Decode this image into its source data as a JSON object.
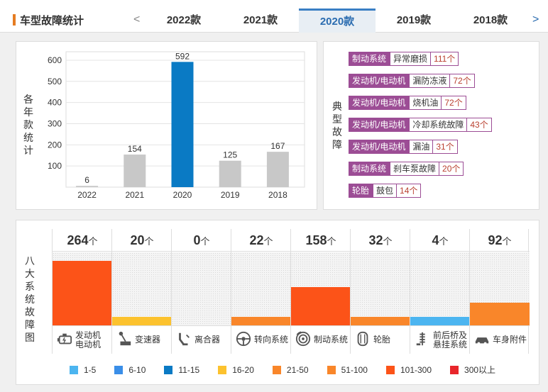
{
  "header": {
    "title": "车型故障统计",
    "prev": "<",
    "next": ">",
    "tabs": [
      "2022款",
      "2021款",
      "2020款",
      "2019款",
      "2018款"
    ],
    "active_tab": 2
  },
  "chart_panel": {
    "label": "各年款统计"
  },
  "chart_data": {
    "type": "bar",
    "categories": [
      "2022",
      "2021",
      "2020",
      "2019",
      "2018"
    ],
    "values": [
      6,
      154,
      592,
      125,
      167
    ],
    "yticks": [
      100,
      200,
      300,
      400,
      500,
      600
    ],
    "ylim": [
      0,
      640
    ],
    "highlight_index": 2,
    "colors": {
      "normal": "#c8c8c8",
      "highlight": "#0a7ac4"
    }
  },
  "typical_panel": {
    "label": "典型故障",
    "items": [
      {
        "system": "制动系统",
        "name": "异常磨损",
        "count": "111个"
      },
      {
        "system": "发动机/电动机",
        "name": "漏防冻液",
        "count": "72个"
      },
      {
        "system": "发动机/电动机",
        "name": "烧机油",
        "count": "72个"
      },
      {
        "system": "发动机/电动机",
        "name": "冷却系统故障",
        "count": "43个"
      },
      {
        "system": "发动机/电动机",
        "name": "漏油",
        "count": "31个"
      },
      {
        "system": "制动系统",
        "name": "刹车泵故障",
        "count": "20个"
      },
      {
        "system": "轮胎",
        "name": "鼓包",
        "count": "14个"
      }
    ]
  },
  "systems_panel": {
    "label": "八大系统故障图",
    "unit": "个",
    "max": 264,
    "systems": [
      {
        "count": 264,
        "name": "发动机 电动机",
        "line1": "发动机",
        "line2": "电动机",
        "icon": "engine-icon",
        "color": "#fc5318"
      },
      {
        "count": 20,
        "name": "变速器",
        "line1": "变速器",
        "line2": "",
        "icon": "gear-shift-icon",
        "color": "#fcc22e"
      },
      {
        "count": 0,
        "name": "离合器",
        "line1": "离合器",
        "line2": "",
        "icon": "clutch-icon",
        "color": "#fcc22e"
      },
      {
        "count": 22,
        "name": "转向系统",
        "line1": "转向系统",
        "line2": "",
        "icon": "steering-wheel-icon",
        "color": "#f9862a"
      },
      {
        "count": 158,
        "name": "制动系统",
        "line1": "制动系统",
        "line2": "",
        "icon": "brake-disc-icon",
        "color": "#fc5318"
      },
      {
        "count": 32,
        "name": "轮胎",
        "line1": "轮胎",
        "line2": "",
        "icon": "tire-icon",
        "color": "#f9862a"
      },
      {
        "count": 4,
        "name": "前后桥及悬挂系统",
        "line1": "前后桥及",
        "line2": "悬挂系统",
        "icon": "suspension-icon",
        "color": "#4cb5f0"
      },
      {
        "count": 92,
        "name": "车身附件",
        "line1": "车身附件",
        "line2": "",
        "icon": "car-body-icon",
        "color": "#f9862a"
      }
    ],
    "legend": [
      {
        "label": "1-5",
        "color": "#4cb5f0"
      },
      {
        "label": "6-10",
        "color": "#3a8ee8"
      },
      {
        "label": "11-15",
        "color": "#0a7ac4"
      },
      {
        "label": "16-20",
        "color": "#fcc22e"
      },
      {
        "label": "21-50",
        "color": "#f9862a"
      },
      {
        "label": "51-100",
        "color": "#f9862a"
      },
      {
        "label": "101-300",
        "color": "#fc5318"
      },
      {
        "label": "300以上",
        "color": "#e8262b"
      }
    ]
  }
}
